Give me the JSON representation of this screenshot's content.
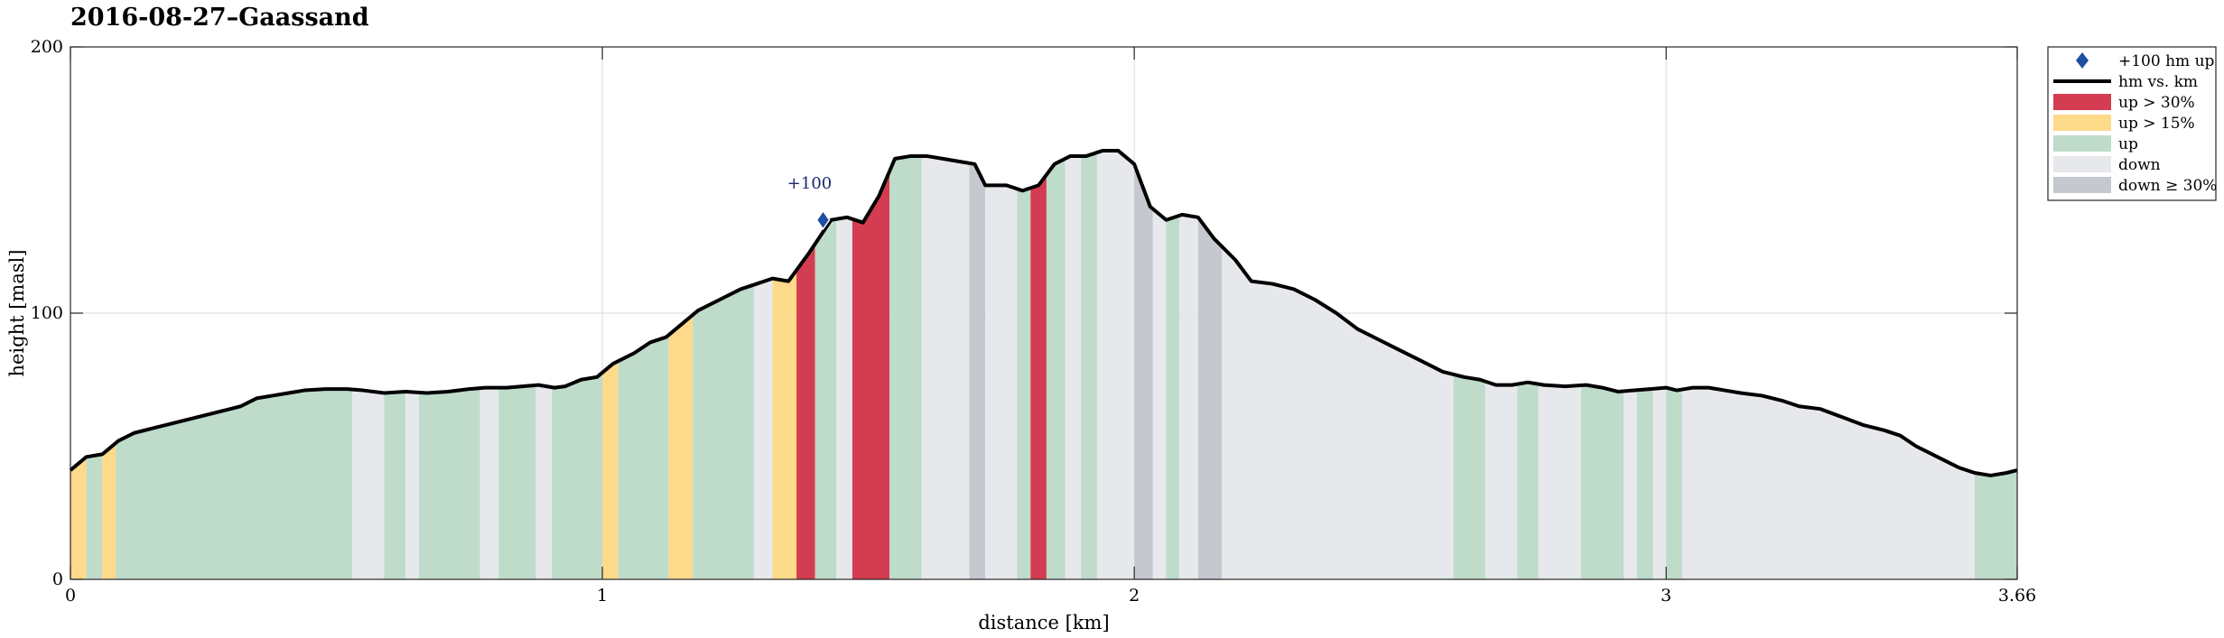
{
  "chart_data": {
    "type": "area",
    "title": "2016-08-27–Gaassand",
    "xlabel": "distance [km]",
    "ylabel": "height [masl]",
    "xlim": [
      0,
      3.66
    ],
    "ylim": [
      0,
      200
    ],
    "xticks": [
      0,
      1,
      2,
      3,
      3.66
    ],
    "xtick_labels": [
      "0",
      "1",
      "2",
      "3",
      "3.66"
    ],
    "yticks": [
      0,
      100,
      200
    ],
    "ytick_labels": [
      "0",
      "100",
      "200"
    ],
    "grid": true,
    "legend_position": "outside top-right",
    "colors": {
      "line": "#000000",
      "up30": "#d43d51",
      "up15": "#fdd98a",
      "up": "#bfdbca",
      "down": "#e7e8ec",
      "down30": "#c6c8d0",
      "marker": "#1f4fa3"
    },
    "legend": [
      {
        "key": "marker",
        "label": "+100 hm up"
      },
      {
        "key": "line",
        "label": "hm vs. km"
      },
      {
        "key": "up30",
        "label": "up > 30%"
      },
      {
        "key": "up15",
        "label": "up > 15%"
      },
      {
        "key": "up",
        "label": "up"
      },
      {
        "key": "down",
        "label": "down"
      },
      {
        "key": "down30",
        "label": "down ≥ 30%"
      }
    ],
    "series": [
      {
        "name": "hm vs. km",
        "points": [
          [
            0,
            41
          ],
          [
            0.03,
            46
          ],
          [
            0.06,
            47
          ],
          [
            0.09,
            52
          ],
          [
            0.12,
            55
          ],
          [
            0.16,
            57
          ],
          [
            0.2,
            59
          ],
          [
            0.24,
            61
          ],
          [
            0.28,
            63
          ],
          [
            0.32,
            65
          ],
          [
            0.35,
            68
          ],
          [
            0.38,
            69
          ],
          [
            0.41,
            70
          ],
          [
            0.44,
            71
          ],
          [
            0.48,
            71.5
          ],
          [
            0.52,
            71.5
          ],
          [
            0.55,
            71
          ],
          [
            0.59,
            70
          ],
          [
            0.63,
            70.5
          ],
          [
            0.67,
            70
          ],
          [
            0.71,
            70.5
          ],
          [
            0.75,
            71.5
          ],
          [
            0.78,
            72
          ],
          [
            0.82,
            72
          ],
          [
            0.85,
            72.5
          ],
          [
            0.88,
            73
          ],
          [
            0.91,
            72
          ],
          [
            0.93,
            72.5
          ],
          [
            0.96,
            75
          ],
          [
            0.99,
            76
          ],
          [
            1.02,
            81
          ],
          [
            1.06,
            85
          ],
          [
            1.09,
            89
          ],
          [
            1.12,
            91
          ],
          [
            1.15,
            96
          ],
          [
            1.18,
            101
          ],
          [
            1.22,
            105
          ],
          [
            1.26,
            109
          ],
          [
            1.29,
            111
          ],
          [
            1.32,
            113
          ],
          [
            1.35,
            112
          ],
          [
            1.39,
            123
          ],
          [
            1.43,
            135
          ],
          [
            1.46,
            136
          ],
          [
            1.49,
            134
          ],
          [
            1.52,
            144
          ],
          [
            1.55,
            158
          ],
          [
            1.58,
            159
          ],
          [
            1.61,
            159
          ],
          [
            1.64,
            158
          ],
          [
            1.67,
            157
          ],
          [
            1.7,
            156
          ],
          [
            1.72,
            148
          ],
          [
            1.76,
            148
          ],
          [
            1.79,
            146
          ],
          [
            1.82,
            148
          ],
          [
            1.85,
            156
          ],
          [
            1.88,
            159
          ],
          [
            1.91,
            159
          ],
          [
            1.94,
            161
          ],
          [
            1.97,
            161
          ],
          [
            2.0,
            156
          ],
          [
            2.03,
            140
          ],
          [
            2.06,
            135
          ],
          [
            2.09,
            137
          ],
          [
            2.12,
            136
          ],
          [
            2.15,
            128
          ],
          [
            2.19,
            120
          ],
          [
            2.22,
            112
          ],
          [
            2.26,
            111
          ],
          [
            2.3,
            109
          ],
          [
            2.34,
            105
          ],
          [
            2.38,
            100
          ],
          [
            2.42,
            94
          ],
          [
            2.46,
            90
          ],
          [
            2.5,
            86
          ],
          [
            2.54,
            82
          ],
          [
            2.58,
            78
          ],
          [
            2.62,
            76
          ],
          [
            2.65,
            75
          ],
          [
            2.68,
            73
          ],
          [
            2.71,
            73
          ],
          [
            2.74,
            74
          ],
          [
            2.77,
            73
          ],
          [
            2.81,
            72.5
          ],
          [
            2.85,
            73
          ],
          [
            2.88,
            72
          ],
          [
            2.91,
            70.5
          ],
          [
            2.94,
            71
          ],
          [
            2.97,
            71.5
          ],
          [
            3.0,
            72
          ],
          [
            3.02,
            71
          ],
          [
            3.05,
            72
          ],
          [
            3.08,
            72
          ],
          [
            3.11,
            71
          ],
          [
            3.14,
            70
          ],
          [
            3.18,
            69
          ],
          [
            3.22,
            67
          ],
          [
            3.25,
            65
          ],
          [
            3.29,
            64
          ],
          [
            3.33,
            61
          ],
          [
            3.37,
            58
          ],
          [
            3.41,
            56
          ],
          [
            3.44,
            54
          ],
          [
            3.47,
            50
          ],
          [
            3.51,
            46
          ],
          [
            3.55,
            42
          ],
          [
            3.58,
            40
          ],
          [
            3.61,
            39
          ],
          [
            3.64,
            40
          ],
          [
            3.66,
            41
          ]
        ]
      }
    ],
    "segments": [
      {
        "from": 0.0,
        "to": 0.03,
        "class": "up15"
      },
      {
        "from": 0.03,
        "to": 0.06,
        "class": "up"
      },
      {
        "from": 0.06,
        "to": 0.085,
        "class": "up15"
      },
      {
        "from": 0.085,
        "to": 0.53,
        "class": "up"
      },
      {
        "from": 0.53,
        "to": 0.59,
        "class": "down"
      },
      {
        "from": 0.59,
        "to": 0.63,
        "class": "up"
      },
      {
        "from": 0.63,
        "to": 0.655,
        "class": "down"
      },
      {
        "from": 0.655,
        "to": 0.77,
        "class": "up"
      },
      {
        "from": 0.77,
        "to": 0.805,
        "class": "down"
      },
      {
        "from": 0.805,
        "to": 0.875,
        "class": "up"
      },
      {
        "from": 0.875,
        "to": 0.905,
        "class": "down"
      },
      {
        "from": 0.905,
        "to": 1.0,
        "class": "up"
      },
      {
        "from": 1.0,
        "to": 1.03,
        "class": "up15"
      },
      {
        "from": 1.03,
        "to": 1.125,
        "class": "up"
      },
      {
        "from": 1.125,
        "to": 1.17,
        "class": "up15"
      },
      {
        "from": 1.17,
        "to": 1.285,
        "class": "up"
      },
      {
        "from": 1.285,
        "to": 1.32,
        "class": "down"
      },
      {
        "from": 1.32,
        "to": 1.365,
        "class": "up15"
      },
      {
        "from": 1.365,
        "to": 1.4,
        "class": "up30"
      },
      {
        "from": 1.4,
        "to": 1.44,
        "class": "up"
      },
      {
        "from": 1.44,
        "to": 1.47,
        "class": "down"
      },
      {
        "from": 1.47,
        "to": 1.54,
        "class": "up30"
      },
      {
        "from": 1.54,
        "to": 1.6,
        "class": "up"
      },
      {
        "from": 1.6,
        "to": 1.69,
        "class": "down"
      },
      {
        "from": 1.69,
        "to": 1.72,
        "class": "down30"
      },
      {
        "from": 1.72,
        "to": 1.78,
        "class": "down"
      },
      {
        "from": 1.78,
        "to": 1.805,
        "class": "up"
      },
      {
        "from": 1.805,
        "to": 1.835,
        "class": "up30"
      },
      {
        "from": 1.835,
        "to": 1.87,
        "class": "up"
      },
      {
        "from": 1.87,
        "to": 1.9,
        "class": "down"
      },
      {
        "from": 1.9,
        "to": 1.93,
        "class": "up"
      },
      {
        "from": 1.93,
        "to": 2.0,
        "class": "down"
      },
      {
        "from": 2.0,
        "to": 2.035,
        "class": "down30"
      },
      {
        "from": 2.035,
        "to": 2.06,
        "class": "down"
      },
      {
        "from": 2.06,
        "to": 2.085,
        "class": "up"
      },
      {
        "from": 2.085,
        "to": 2.12,
        "class": "down"
      },
      {
        "from": 2.12,
        "to": 2.165,
        "class": "down30"
      },
      {
        "from": 2.165,
        "to": 2.6,
        "class": "down"
      },
      {
        "from": 2.6,
        "to": 2.66,
        "class": "up"
      },
      {
        "from": 2.66,
        "to": 2.72,
        "class": "down"
      },
      {
        "from": 2.72,
        "to": 2.76,
        "class": "up"
      },
      {
        "from": 2.76,
        "to": 2.84,
        "class": "down"
      },
      {
        "from": 2.84,
        "to": 2.92,
        "class": "up"
      },
      {
        "from": 2.92,
        "to": 2.945,
        "class": "down"
      },
      {
        "from": 2.945,
        "to": 2.975,
        "class": "up"
      },
      {
        "from": 2.975,
        "to": 3.0,
        "class": "down"
      },
      {
        "from": 3.0,
        "to": 3.03,
        "class": "up"
      },
      {
        "from": 3.03,
        "to": 3.58,
        "class": "down"
      },
      {
        "from": 3.58,
        "to": 3.66,
        "class": "up"
      }
    ],
    "markers": [
      {
        "x": 1.415,
        "y": 135,
        "label": "+100"
      }
    ]
  }
}
